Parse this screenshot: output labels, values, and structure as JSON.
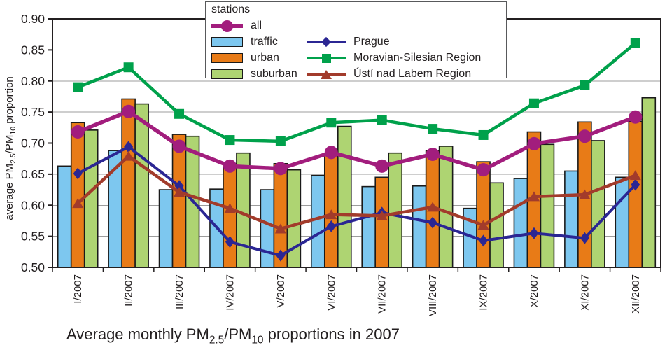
{
  "legend": {
    "title": "stations",
    "left": [
      "all",
      "traffic",
      "urban",
      "suburban"
    ],
    "right": [
      "Prague",
      "Moravian-Silesian Region",
      "Ústí nad Labem Region"
    ]
  },
  "axis": {
    "ylabel_parts": [
      "average PM",
      "2.5",
      "/PM",
      "10",
      " proportion"
    ],
    "y_ticks": [
      "0.90",
      "0.85",
      "0.80",
      "0.75",
      "0.70",
      "0.65",
      "0.60",
      "0.55",
      "0.50"
    ]
  },
  "caption_parts": [
    "Average monthly PM",
    "2.5",
    "/PM",
    "10",
    " proportions in 2007"
  ],
  "chart_data": {
    "type": "bar+line",
    "title": "Average monthly PM2.5/PM10 proportions in 2007",
    "ylabel": "average PM2.5/PM10 proportion",
    "categories": [
      "I/2007",
      "II/2007",
      "III/2007",
      "IV/2007",
      "V/2007",
      "VI/2007",
      "VII/2007",
      "VIII/2007",
      "IX/2007",
      "X/2007",
      "XI/2007",
      "XII/2007"
    ],
    "ylim": [
      0.5,
      0.9
    ],
    "ytick_interval": 0.05,
    "grid": true,
    "legend_position": "top",
    "legend_title": "stations",
    "bar_series": [
      {
        "name": "traffic",
        "color": "#7DC7EF",
        "values": [
          0.663,
          0.688,
          0.625,
          0.626,
          0.625,
          0.648,
          0.63,
          0.631,
          0.595,
          0.643,
          0.655,
          0.645
        ]
      },
      {
        "name": "urban",
        "color": "#E87B17",
        "values": [
          0.733,
          0.771,
          0.714,
          0.667,
          0.667,
          0.68,
          0.645,
          0.688,
          0.67,
          0.718,
          0.734,
          0.735
        ]
      },
      {
        "name": "suburban",
        "color": "#AED472",
        "values": [
          0.721,
          0.763,
          0.711,
          0.684,
          0.657,
          0.727,
          0.684,
          0.695,
          0.636,
          0.698,
          0.704,
          0.773
        ]
      }
    ],
    "line_series": [
      {
        "name": "all",
        "color": "#A21D7D",
        "marker": "circle",
        "line_width": 5.5,
        "values": [
          0.718,
          0.751,
          0.695,
          0.663,
          0.659,
          0.685,
          0.663,
          0.682,
          0.657,
          0.699,
          0.711,
          0.742
        ]
      },
      {
        "name": "Prague",
        "color": "#2B2693",
        "marker": "diamond",
        "line_width": 4,
        "values": [
          0.651,
          0.694,
          0.631,
          0.541,
          0.519,
          0.566,
          0.588,
          0.572,
          0.543,
          0.555,
          0.547,
          0.633
        ]
      },
      {
        "name": "Moravian-Silesian Region",
        "color": "#00A14B",
        "marker": "square",
        "line_width": 4.5,
        "values": [
          0.79,
          0.822,
          0.747,
          0.705,
          0.703,
          0.733,
          0.737,
          0.723,
          0.713,
          0.764,
          0.793,
          0.861
        ]
      },
      {
        "name": "Ústí nad Labem Region",
        "color": "#A23B2B",
        "marker": "triangle",
        "line_width": 4.5,
        "values": [
          0.603,
          0.679,
          0.621,
          0.595,
          0.562,
          0.585,
          0.583,
          0.597,
          0.568,
          0.614,
          0.617,
          0.648
        ]
      }
    ],
    "draw_order": [
      1,
      3,
      2,
      0
    ],
    "colors": {
      "gridline": "#9C9C9C",
      "frame": "#231F20",
      "bar_border": "#1A1A1A",
      "text": "#231F20"
    }
  }
}
